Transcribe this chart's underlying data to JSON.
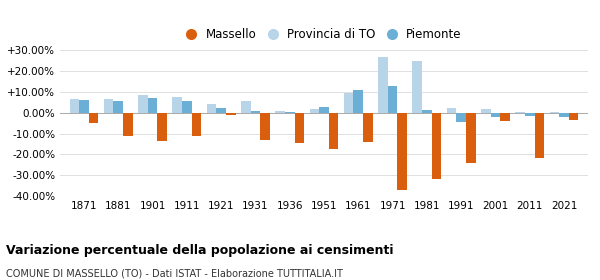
{
  "years": [
    1871,
    1881,
    1901,
    1911,
    1921,
    1931,
    1936,
    1951,
    1961,
    1971,
    1981,
    1991,
    2001,
    2011,
    2021
  ],
  "massello": [
    -5.0,
    -11.0,
    -13.5,
    -11.0,
    -1.0,
    -13.0,
    -14.5,
    -17.5,
    -14.0,
    -37.0,
    -32.0,
    -24.0,
    -4.0,
    -21.5,
    -3.5
  ],
  "provincia_to": [
    6.5,
    6.5,
    8.5,
    7.5,
    4.0,
    5.5,
    1.0,
    2.0,
    9.5,
    27.0,
    25.0,
    2.5,
    2.0,
    0.5,
    0.5
  ],
  "piemonte": [
    6.0,
    5.5,
    7.0,
    5.5,
    2.5,
    1.0,
    0.5,
    3.0,
    11.0,
    13.0,
    1.5,
    -4.5,
    -2.0,
    -1.5,
    -2.0
  ],
  "massello_color": "#d95f0e",
  "provincia_color": "#b8d4e8",
  "piemonte_color": "#6baed6",
  "title": "Variazione percentuale della popolazione ai censimenti",
  "subtitle": "COMUNE DI MASSELLO (TO) - Dati ISTAT - Elaborazione TUTTITALIA.IT",
  "ylim": [
    -40,
    30
  ],
  "yticks": [
    -40,
    -30,
    -20,
    -10,
    0,
    10,
    20,
    30
  ],
  "background_color": "#ffffff",
  "grid_color": "#e0e0e0"
}
